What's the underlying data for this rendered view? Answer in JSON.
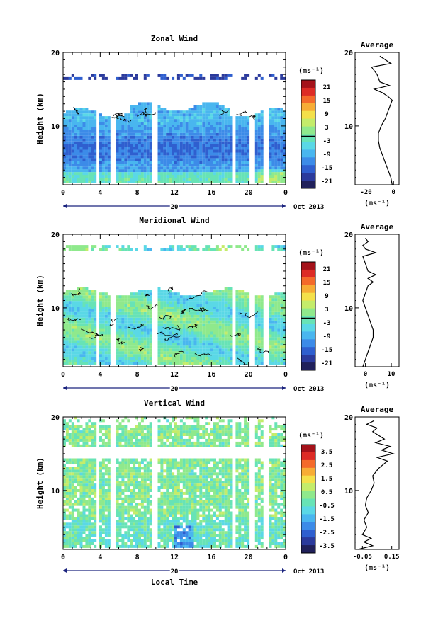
{
  "chart_data": [
    {
      "type": "heatmap",
      "title": "Zonal Wind",
      "ylabel": "Height (km)",
      "xlabel": "",
      "xlim": [
        0,
        24
      ],
      "ylim": [
        2,
        20
      ],
      "x_ticks": [
        "0",
        "4",
        "8",
        "12",
        "16",
        "20",
        "0"
      ],
      "y_ticks": [
        "10",
        "20"
      ],
      "date_label": "20",
      "month_label": "Oct 2013",
      "colorbar": {
        "unit": "(ms⁻¹)",
        "min": -24,
        "max": 24,
        "ticks": [
          "21",
          "15",
          "9",
          "3",
          "-3",
          "-9",
          "-15",
          "-21"
        ]
      },
      "profile": {
        "title": "Average",
        "xlabel": "(ms⁻¹)",
        "x_ticks": [
          "-20",
          "0"
        ],
        "xlim": [
          -28,
          4
        ],
        "heights": [
          2,
          3,
          4,
          5,
          6,
          7,
          8,
          9,
          10,
          11,
          12,
          13,
          13.5,
          14,
          14.5,
          15,
          15.5,
          16,
          17,
          18,
          18.5,
          19,
          19.5
        ],
        "values": [
          -1,
          -2,
          -4,
          -6,
          -8,
          -10,
          -11,
          -11,
          -9,
          -6,
          -4,
          -2,
          -1,
          -4,
          -8,
          -14,
          -3,
          -10,
          -12,
          -16,
          -2,
          -6,
          -10
        ]
      }
    },
    {
      "type": "heatmap",
      "title": "Meridional Wind",
      "ylabel": "Height (km)",
      "xlabel": "",
      "xlim": [
        0,
        24
      ],
      "ylim": [
        2,
        20
      ],
      "x_ticks": [
        "0",
        "4",
        "8",
        "12",
        "16",
        "20",
        "0"
      ],
      "y_ticks": [
        "10",
        "20"
      ],
      "date_label": "20",
      "month_label": "Oct 2013",
      "colorbar": {
        "unit": "(ms⁻¹)",
        "min": -24,
        "max": 24,
        "ticks": [
          "21",
          "15",
          "9",
          "3",
          "-3",
          "-9",
          "-15",
          "-21"
        ]
      },
      "profile": {
        "title": "Average",
        "xlabel": "(ms⁻¹)",
        "x_ticks": [
          "0",
          "10"
        ],
        "xlim": [
          -4,
          13
        ],
        "heights": [
          2,
          3,
          4,
          5,
          6,
          7,
          8,
          9,
          10,
          11,
          12,
          13,
          13.5,
          14,
          14.5,
          15,
          16,
          17,
          17.5,
          18,
          18.5,
          19,
          19.5
        ],
        "values": [
          -1,
          0,
          1,
          2,
          3,
          3,
          2,
          1,
          0,
          -1,
          0,
          1,
          3,
          1,
          4,
          1,
          0,
          -1,
          4,
          0,
          -1,
          1,
          0
        ]
      }
    },
    {
      "type": "heatmap",
      "title": "Vertical Wind",
      "ylabel": "Height (km)",
      "xlabel": "Local Time",
      "xlim": [
        0,
        24
      ],
      "ylim": [
        2,
        20
      ],
      "x_ticks": [
        "0",
        "4",
        "8",
        "12",
        "16",
        "20",
        "0"
      ],
      "y_ticks": [
        "10",
        "20"
      ],
      "date_label": "20",
      "month_label": "Oct 2013",
      "colorbar": {
        "unit": "(ms⁻¹)",
        "min": -4,
        "max": 4,
        "ticks": [
          "3.5",
          "2.5",
          "1.5",
          "0.5",
          "-0.5",
          "-1.5",
          "-2.5",
          "-3.5"
        ]
      },
      "profile": {
        "title": "Average",
        "xlabel": "(ms⁻¹)",
        "x_ticks": [
          "-0.05",
          "0.15"
        ],
        "xlim": [
          -0.1,
          0.2
        ],
        "heights": [
          2,
          2.5,
          3,
          3.5,
          4,
          5,
          6,
          7,
          8,
          9,
          10,
          11,
          12,
          13,
          14,
          14.5,
          15,
          15.5,
          16,
          16.5,
          17,
          17.5,
          18,
          18.5,
          19,
          19.5
        ],
        "values": [
          -0.08,
          0.02,
          -0.04,
          0.01,
          -0.05,
          -0.02,
          -0.04,
          -0.01,
          -0.03,
          -0.02,
          0.01,
          0.03,
          0.02,
          0.06,
          0.12,
          0.05,
          0.16,
          0.08,
          0.14,
          0.04,
          0.1,
          0.06,
          0.02,
          0.05,
          -0.02,
          0.03
        ]
      }
    }
  ]
}
